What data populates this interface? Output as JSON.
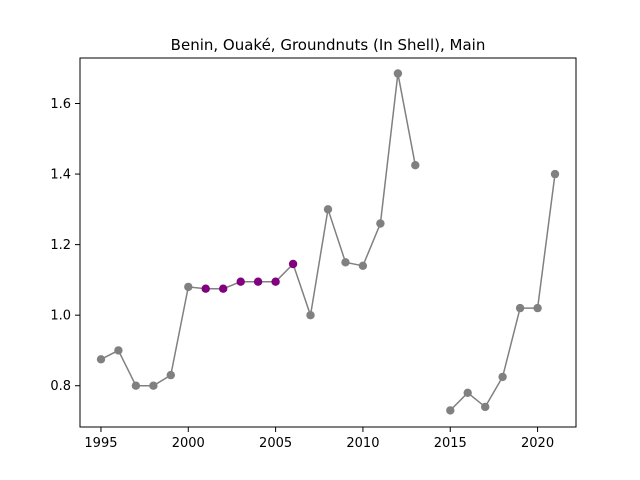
{
  "chart_data": {
    "type": "line",
    "title": "Benin, Ouaké, Groundnuts (In Shell), Main",
    "xlabel": "",
    "ylabel": "",
    "xlim": [
      1993.8,
      2022.2
    ],
    "ylim": [
      0.683,
      1.729
    ],
    "xticks": [
      1995,
      2000,
      2005,
      2010,
      2015,
      2020
    ],
    "yticks": [
      0.8,
      1.0,
      1.2,
      1.4,
      1.6
    ],
    "ytick_labels": [
      "0.8",
      "1.0",
      "1.2",
      "1.4",
      "1.6"
    ],
    "grid": false,
    "line_color": "#808080",
    "segments": [
      [
        1995,
        1996,
        1997,
        1998,
        1999,
        2000,
        2001,
        2002,
        2003,
        2004,
        2005,
        2006,
        2007,
        2008,
        2009,
        2010,
        2011,
        2012,
        2013
      ],
      [
        2015,
        2016,
        2017,
        2018,
        2019,
        2020,
        2021
      ]
    ],
    "series": [
      {
        "color": "#808080",
        "points": [
          [
            1995,
            0.875
          ],
          [
            1996,
            0.9
          ],
          [
            1997,
            0.8
          ],
          [
            1998,
            0.8
          ],
          [
            1999,
            0.83
          ],
          [
            2000,
            1.08
          ],
          [
            2007,
            1.0
          ],
          [
            2008,
            1.3
          ],
          [
            2009,
            1.15
          ],
          [
            2010,
            1.14
          ],
          [
            2011,
            1.26
          ],
          [
            2012,
            1.685
          ],
          [
            2013,
            1.425
          ],
          [
            2015,
            0.73
          ],
          [
            2016,
            0.78
          ],
          [
            2017,
            0.74
          ],
          [
            2018,
            0.825
          ],
          [
            2019,
            1.02
          ],
          [
            2020,
            1.02
          ],
          [
            2021,
            1.4
          ]
        ]
      },
      {
        "color": "#800080",
        "points": [
          [
            2001,
            1.075
          ],
          [
            2002,
            1.075
          ],
          [
            2003,
            1.095
          ],
          [
            2004,
            1.095
          ],
          [
            2005,
            1.095
          ],
          [
            2006,
            1.145
          ]
        ]
      }
    ]
  }
}
